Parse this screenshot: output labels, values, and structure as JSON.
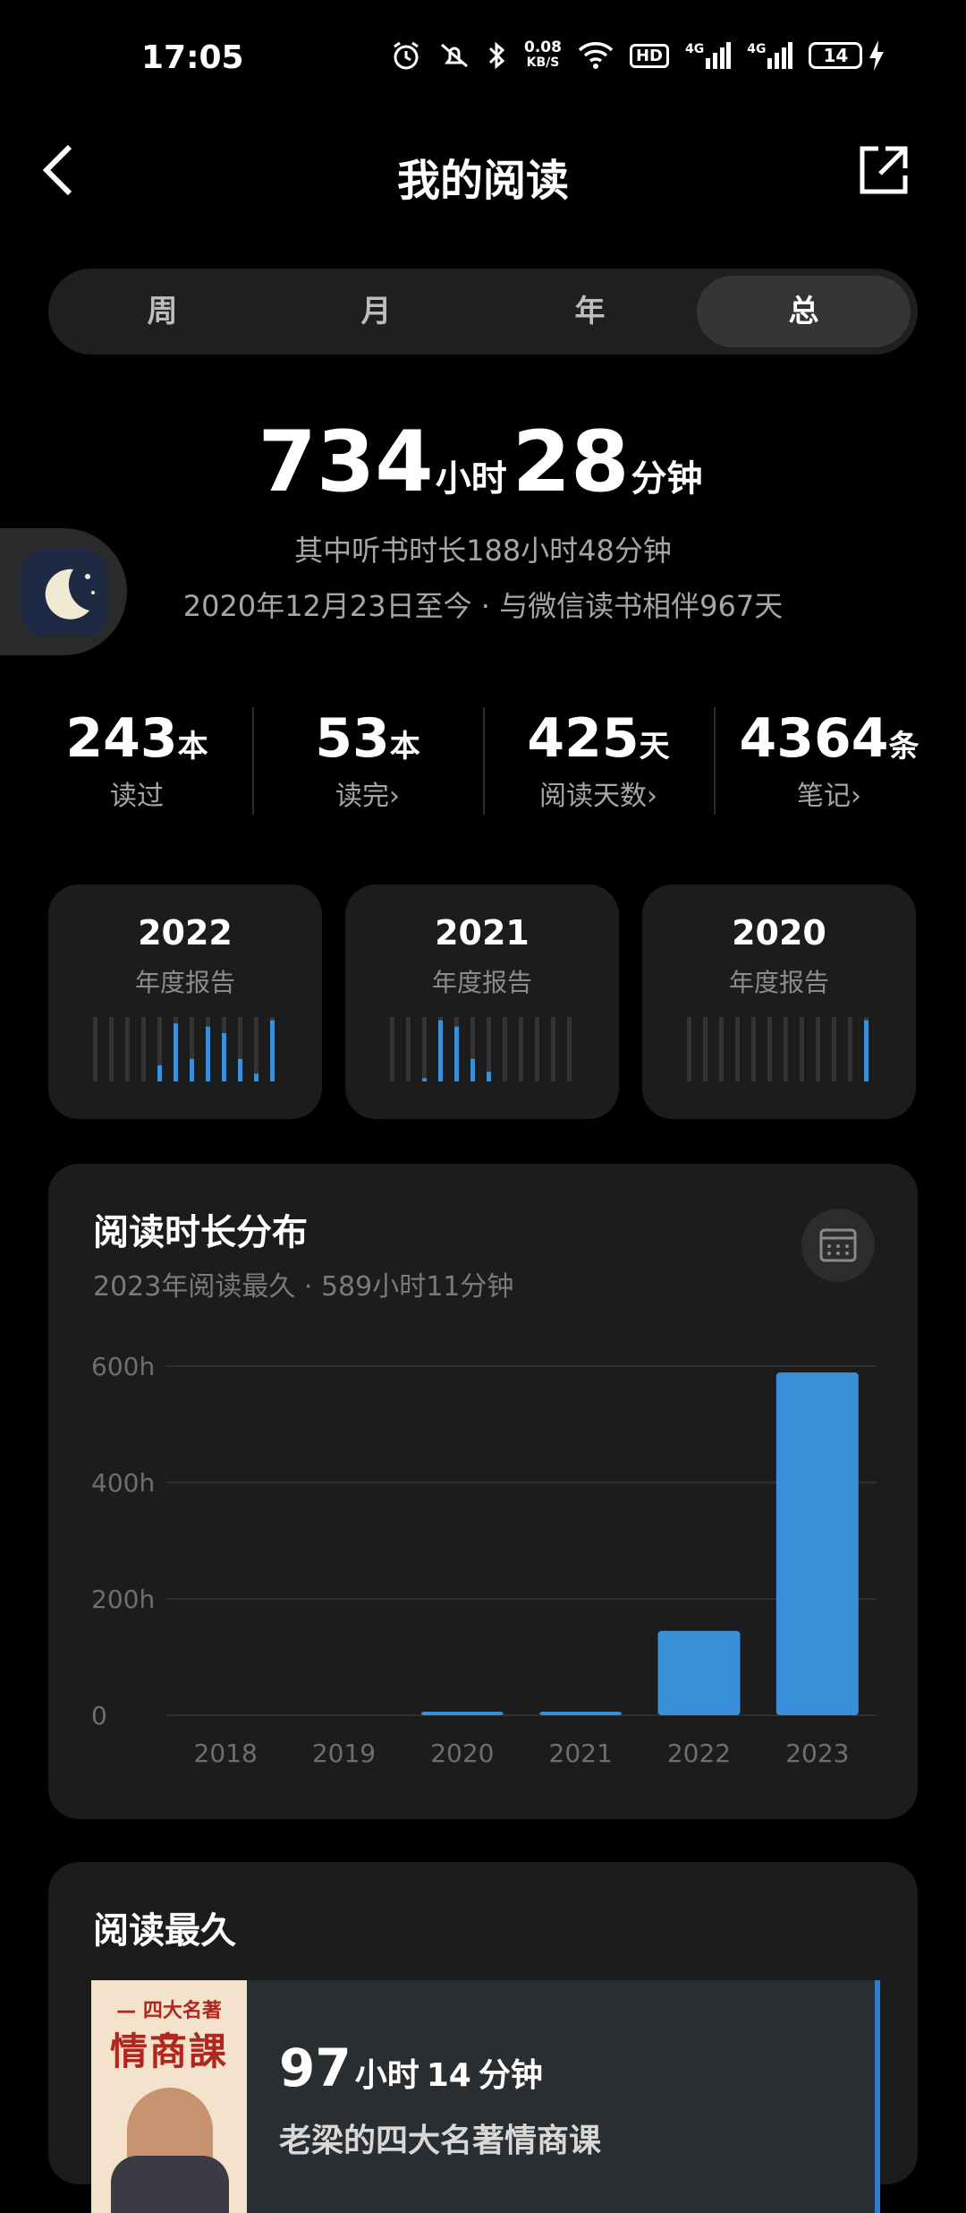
{
  "status_bar": {
    "time": "17:05",
    "net_speed_value": "0.08",
    "net_speed_unit": "KB/S",
    "hd_label": "HD",
    "signal1_label": "4G",
    "signal2_label": "4G",
    "battery_level": "14",
    "icons": [
      "alarm-icon",
      "mute-icon",
      "bluetooth-icon",
      "wifi-icon",
      "hd-icon",
      "signal-icon",
      "signal-icon",
      "battery-icon",
      "charging-icon"
    ]
  },
  "header": {
    "title": "我的阅读",
    "back_icon": "back-arrow-icon",
    "share_icon": "share-icon"
  },
  "tabs": [
    {
      "label": "周",
      "active": false
    },
    {
      "label": "月",
      "active": false
    },
    {
      "label": "年",
      "active": false
    },
    {
      "label": "总",
      "active": true
    }
  ],
  "summary": {
    "hours": "734",
    "hours_unit": "小时",
    "minutes": "28",
    "minutes_unit": "分钟",
    "listen_text": "其中听书时长188小时48分钟",
    "since_text": "2020年12月23日至今 · 与微信读书相伴967天"
  },
  "stats": [
    {
      "value": "243",
      "unit": "本",
      "label": "读过"
    },
    {
      "value": "53",
      "unit": "本",
      "label": "读完›"
    },
    {
      "value": "425",
      "unit": "天",
      "label": "阅读天数›"
    },
    {
      "value": "4364",
      "unit": "条",
      "label": "笔记›"
    }
  ],
  "annual_reports": [
    {
      "year": "2022",
      "label": "年度报告",
      "months": [
        0,
        0,
        0,
        0,
        0.25,
        0.9,
        0.35,
        0.85,
        0.75,
        0.35,
        0.12,
        0.95
      ]
    },
    {
      "year": "2021",
      "label": "年度报告",
      "months": [
        0,
        0,
        0.05,
        0.95,
        0.85,
        0.35,
        0.15,
        0,
        0,
        0,
        0,
        0
      ]
    },
    {
      "year": "2020",
      "label": "年度报告",
      "months": [
        0,
        0,
        0,
        0,
        0,
        0,
        0,
        0,
        0,
        0,
        0,
        0.95
      ]
    }
  ],
  "distribution": {
    "title": "阅读时长分布",
    "subtitle": "2023年阅读最久 · 589小时11分钟",
    "calendar_icon": "calendar-icon"
  },
  "chart_data": {
    "type": "bar",
    "categories": [
      "2018",
      "2019",
      "2020",
      "2021",
      "2022",
      "2023"
    ],
    "values": [
      0,
      0,
      5,
      6,
      145,
      589
    ],
    "ylim": [
      0,
      600
    ],
    "yticks": [
      "0",
      "200h",
      "400h",
      "600h"
    ],
    "ytick_values": [
      0,
      200,
      400,
      600
    ],
    "grid": true,
    "color": "#3a8fd9"
  },
  "longest": {
    "title": "阅读最久",
    "book_hours": "97",
    "book_hours_unit": "小时",
    "book_minutes": "14",
    "book_minutes_unit": "分钟",
    "book_name": "老梁的四大名著情商课",
    "cover_top": "— 四大名著 —",
    "cover_main": "情商課"
  },
  "colors": {
    "accent": "#3a8fd9",
    "card_bg": "#1c1c1c",
    "muted_text": "#a6a6a6"
  }
}
